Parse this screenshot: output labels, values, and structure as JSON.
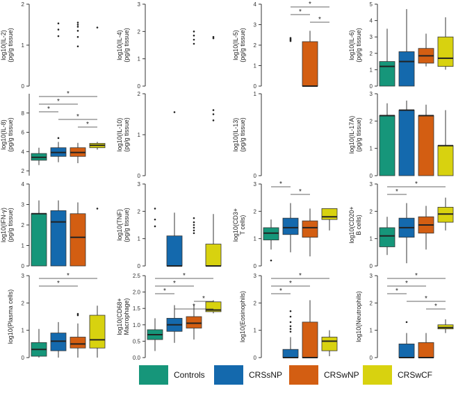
{
  "colors": {
    "Controls": "#16967a",
    "CRSsNP": "#1469ad",
    "CRSwNP": "#d35e12",
    "CRSwCF": "#d8d20f"
  },
  "legend": [
    "Controls",
    "CRSsNP",
    "CRSwNP",
    "CRSwCF"
  ],
  "chart_data": [
    {
      "type": "box",
      "ylabel": [
        "log10(IL-2)",
        "(pg/g tissue)"
      ],
      "ylim": [
        0,
        2
      ],
      "yticks": [
        0,
        1,
        2
      ],
      "groups": [
        {
          "name": "Controls",
          "box": null,
          "outliers": []
        },
        {
          "name": "CRSsNP",
          "box": null,
          "outliers": [
            1.53,
            1.38,
            1.22
          ]
        },
        {
          "name": "CRSwNP",
          "box": null,
          "outliers": [
            1.55,
            1.5,
            1.45,
            1.35,
            1.2,
            0.97
          ]
        },
        {
          "name": "CRSwCF",
          "box": null,
          "outliers": [
            1.43
          ]
        }
      ],
      "sig": []
    },
    {
      "type": "box",
      "ylabel": [
        "log10(IL-4)",
        "(pg/g tissue)"
      ],
      "ylim": [
        0,
        3
      ],
      "yticks": [
        0,
        1,
        2,
        3
      ],
      "groups": [
        {
          "name": "Controls",
          "box": null,
          "outliers": []
        },
        {
          "name": "CRSsNP",
          "box": null,
          "outliers": []
        },
        {
          "name": "CRSwNP",
          "box": null,
          "outliers": [
            2.0,
            1.85,
            1.7,
            1.55
          ]
        },
        {
          "name": "CRSwCF",
          "box": null,
          "outliers": [
            1.8,
            1.75
          ]
        }
      ],
      "sig": []
    },
    {
      "type": "box",
      "ylabel": [
        "log10(IL-5)",
        "(pg/g tissue)"
      ],
      "ylim": [
        0,
        4
      ],
      "yticks": [
        0,
        1,
        2,
        3,
        4
      ],
      "groups": [
        {
          "name": "Controls",
          "box": null,
          "outliers": []
        },
        {
          "name": "CRSsNP",
          "box": null,
          "outliers": [
            2.35,
            2.3,
            2.25,
            2.2
          ]
        },
        {
          "name": "CRSwNP",
          "box": {
            "q1": 0,
            "med": 0,
            "q3": 2.17,
            "lo": 0,
            "hi": 2.7
          },
          "outliers": []
        },
        {
          "name": "CRSwCF",
          "box": null,
          "outliers": []
        }
      ],
      "sig": [
        [
          1,
          3,
          "*"
        ],
        [
          1,
          2,
          "*"
        ],
        [
          2,
          3,
          "*"
        ]
      ]
    },
    {
      "type": "box",
      "ylabel": [
        "log10(IL-6)",
        "(pg/g tissue)"
      ],
      "ylim": [
        0,
        5
      ],
      "yticks": [
        0,
        1,
        2,
        3,
        4,
        5
      ],
      "groups": [
        {
          "name": "Controls",
          "box": {
            "q1": 0,
            "med": 1.2,
            "q3": 1.5,
            "lo": 0,
            "hi": 3.5
          },
          "outliers": []
        },
        {
          "name": "CRSsNP",
          "box": {
            "q1": 0,
            "med": 1.5,
            "q3": 2.1,
            "lo": 0,
            "hi": 4.7
          },
          "outliers": []
        },
        {
          "name": "CRSwNP",
          "box": {
            "q1": 1.4,
            "med": 1.85,
            "q3": 2.3,
            "lo": 1.2,
            "hi": 3.2
          },
          "outliers": []
        },
        {
          "name": "CRSwCF",
          "box": {
            "q1": 1.2,
            "med": 1.7,
            "q3": 3.0,
            "lo": 1.0,
            "hi": 4.2
          },
          "outliers": []
        }
      ],
      "sig": []
    },
    {
      "type": "box",
      "ylabel": [
        "log10(IL-8)",
        "(pg/g tissue)"
      ],
      "ylim": [
        1.5,
        10
      ],
      "yticks": [
        2,
        4,
        6,
        8
      ],
      "groups": [
        {
          "name": "Controls",
          "box": {
            "q1": 3.1,
            "med": 3.4,
            "q3": 3.8,
            "lo": 2.6,
            "hi": 4.4
          },
          "outliers": []
        },
        {
          "name": "CRSsNP",
          "box": {
            "q1": 3.5,
            "med": 3.9,
            "q3": 4.4,
            "lo": 2.9,
            "hi": 5.0
          },
          "outliers": [
            5.4
          ]
        },
        {
          "name": "CRSwNP",
          "box": {
            "q1": 3.5,
            "med": 3.9,
            "q3": 4.4,
            "lo": 2.8,
            "hi": 4.9
          },
          "outliers": []
        },
        {
          "name": "CRSwCF",
          "box": {
            "q1": 4.4,
            "med": 4.65,
            "q3": 4.85,
            "lo": 4.2,
            "hi": 5.0
          },
          "outliers": []
        }
      ],
      "sig": [
        [
          0,
          3,
          "*"
        ],
        [
          0,
          2,
          "*"
        ],
        [
          0,
          1,
          "*"
        ],
        [
          1,
          3,
          "*"
        ],
        [
          2,
          3,
          "*"
        ]
      ]
    },
    {
      "type": "box",
      "ylabel": [
        "log10(IL-10)",
        "(pg/g tissue)"
      ],
      "ylim": [
        0,
        2
      ],
      "yticks": [
        0,
        1,
        2
      ],
      "groups": [
        {
          "name": "Controls",
          "box": null,
          "outliers": []
        },
        {
          "name": "CRSsNP",
          "box": null,
          "outliers": [
            1.55
          ]
        },
        {
          "name": "CRSwNP",
          "box": null,
          "outliers": []
        },
        {
          "name": "CRSwCF",
          "box": null,
          "outliers": [
            1.6,
            1.5,
            1.35
          ]
        }
      ],
      "sig": []
    },
    {
      "type": "box",
      "ylabel": [
        "log10(IL-13)",
        "(pg/g tissue)"
      ],
      "ylim": [
        0,
        1
      ],
      "yticks": [
        0,
        1
      ],
      "groups": [
        {
          "name": "Controls",
          "box": null,
          "outliers": []
        },
        {
          "name": "CRSsNP",
          "box": null,
          "outliers": []
        },
        {
          "name": "CRSwNP",
          "box": null,
          "outliers": []
        },
        {
          "name": "CRSwCF",
          "box": null,
          "outliers": []
        }
      ],
      "sig": []
    },
    {
      "type": "box",
      "ylabel": [
        "log10(IL-17A)",
        "(pg/g tissue)"
      ],
      "ylim": [
        0,
        3
      ],
      "yticks": [
        0,
        1,
        2,
        3
      ],
      "groups": [
        {
          "name": "Controls",
          "box": {
            "q1": 0,
            "med": 2.2,
            "q3": 2.2,
            "lo": 0,
            "hi": 2.65
          },
          "outliers": []
        },
        {
          "name": "CRSsNP",
          "box": {
            "q1": 0,
            "med": 2.4,
            "q3": 2.4,
            "lo": 0,
            "hi": 2.75
          },
          "outliers": []
        },
        {
          "name": "CRSwNP",
          "box": {
            "q1": 0,
            "med": 2.2,
            "q3": 2.2,
            "lo": 0,
            "hi": 2.6
          },
          "outliers": []
        },
        {
          "name": "CRSwCF",
          "box": {
            "q1": 0,
            "med": 1.1,
            "q3": 1.1,
            "lo": 0,
            "hi": 2.4
          },
          "outliers": []
        }
      ],
      "sig": []
    },
    {
      "type": "box",
      "ylabel": [
        "log10(IFN-γ)",
        "(pg/g tissue)"
      ],
      "ylim": [
        0,
        4
      ],
      "yticks": [
        0,
        1,
        2,
        3,
        4
      ],
      "groups": [
        {
          "name": "Controls",
          "box": {
            "q1": 0,
            "med": 2.55,
            "q3": 2.55,
            "lo": 0,
            "hi": 3.2
          },
          "outliers": []
        },
        {
          "name": "CRSsNP",
          "box": {
            "q1": 0,
            "med": 2.15,
            "q3": 2.7,
            "lo": 0,
            "hi": 3.2
          },
          "outliers": []
        },
        {
          "name": "CRSwNP",
          "box": {
            "q1": 0,
            "med": 1.4,
            "q3": 2.55,
            "lo": 0,
            "hi": 3.1
          },
          "outliers": []
        },
        {
          "name": "CRSwCF",
          "box": null,
          "outliers": [
            2.8
          ]
        }
      ],
      "sig": []
    },
    {
      "type": "box",
      "ylabel": [
        "log10(TNF)",
        "(pg/g tissue)"
      ],
      "ylim": [
        0,
        3
      ],
      "yticks": [
        0,
        1,
        2,
        3
      ],
      "groups": [
        {
          "name": "Controls",
          "box": null,
          "outliers": [
            2.1,
            1.7,
            1.45
          ]
        },
        {
          "name": "CRSsNP",
          "box": {
            "q1": 0,
            "med": 0,
            "q3": 1.1,
            "lo": 0,
            "hi": 1.95
          },
          "outliers": []
        },
        {
          "name": "CRSwNP",
          "box": null,
          "outliers": [
            1.75,
            1.6,
            1.5,
            1.4,
            1.3,
            1.2
          ]
        },
        {
          "name": "CRSwCF",
          "box": {
            "q1": 0,
            "med": 0,
            "q3": 0.8,
            "lo": 0,
            "hi": 1.9
          },
          "outliers": []
        }
      ],
      "sig": []
    },
    {
      "type": "box",
      "ylabel": [
        "log10(CD3+",
        "T cells)"
      ],
      "ylim": [
        0,
        3
      ],
      "yticks": [
        0,
        1,
        2,
        3
      ],
      "groups": [
        {
          "name": "Controls",
          "box": {
            "q1": 0.95,
            "med": 1.2,
            "q3": 1.4,
            "lo": 0.6,
            "hi": 1.7
          },
          "outliers": [
            0.2
          ]
        },
        {
          "name": "CRSsNP",
          "box": {
            "q1": 1.15,
            "med": 1.4,
            "q3": 1.75,
            "lo": 0.5,
            "hi": 2.3
          },
          "outliers": []
        },
        {
          "name": "CRSwNP",
          "box": {
            "q1": 1.05,
            "med": 1.4,
            "q3": 1.65,
            "lo": 0.35,
            "hi": 2.1
          },
          "outliers": []
        },
        {
          "name": "CRSwCF",
          "box": {
            "q1": 1.7,
            "med": 1.8,
            "q3": 2.1,
            "lo": 1.3,
            "hi": 2.1
          },
          "outliers": []
        }
      ],
      "sig": [
        [
          0,
          1,
          "*"
        ],
        [
          1,
          2,
          "*"
        ]
      ]
    },
    {
      "type": "box",
      "ylabel": [
        "log10(CD20+",
        "B cells)"
      ],
      "ylim": [
        0,
        3
      ],
      "yticks": [
        0,
        1,
        2,
        3
      ],
      "groups": [
        {
          "name": "Controls",
          "box": {
            "q1": 0.7,
            "med": 1.1,
            "q3": 1.4,
            "lo": 0.4,
            "hi": 1.8
          },
          "outliers": []
        },
        {
          "name": "CRSsNP",
          "box": {
            "q1": 1.05,
            "med": 1.4,
            "q3": 1.75,
            "lo": 0.1,
            "hi": 2.3
          },
          "outliers": []
        },
        {
          "name": "CRSwNP",
          "box": {
            "q1": 1.2,
            "med": 1.5,
            "q3": 1.8,
            "lo": 0.6,
            "hi": 2.2
          },
          "outliers": []
        },
        {
          "name": "CRSwCF",
          "box": {
            "q1": 1.6,
            "med": 1.9,
            "q3": 2.15,
            "lo": 1.3,
            "hi": 2.5
          },
          "outliers": []
        }
      ],
      "sig": [
        [
          0,
          3,
          "*"
        ],
        [
          0,
          1,
          "*"
        ]
      ]
    },
    {
      "type": "box",
      "ylabel": [
        "log10(Plasma cells)"
      ],
      "ylim": [
        0,
        3
      ],
      "yticks": [
        0,
        1,
        2,
        3
      ],
      "groups": [
        {
          "name": "Controls",
          "box": {
            "q1": 0.05,
            "med": 0.3,
            "q3": 0.55,
            "lo": 0,
            "hi": 1.05
          },
          "outliers": []
        },
        {
          "name": "CRSsNP",
          "box": {
            "q1": 0.25,
            "med": 0.6,
            "q3": 0.9,
            "lo": 0,
            "hi": 1.3
          },
          "outliers": []
        },
        {
          "name": "CRSwNP",
          "box": {
            "q1": 0.35,
            "med": 0.5,
            "q3": 0.75,
            "lo": 0,
            "hi": 1.25
          },
          "outliers": [
            1.6,
            1.55
          ]
        },
        {
          "name": "CRSwCF",
          "box": {
            "q1": 0.35,
            "med": 0.65,
            "q3": 1.55,
            "lo": 0,
            "hi": 1.9
          },
          "outliers": []
        }
      ],
      "sig": [
        [
          0,
          3,
          "*"
        ],
        [
          0,
          2,
          "*"
        ]
      ]
    },
    {
      "type": "box",
      "ylabel": [
        "log10(CD68+",
        "Macrophage)"
      ],
      "ylim": [
        0,
        2.5
      ],
      "yticks": [
        0,
        0.5,
        1,
        1.5,
        2,
        2.5
      ],
      "ytickLabels": [
        "0.0",
        "0.5",
        "1.0",
        "1.5",
        "2.0",
        "2.5"
      ],
      "groups": [
        {
          "name": "Controls",
          "box": {
            "q1": 0.55,
            "med": 0.7,
            "q3": 0.85,
            "lo": 0.2,
            "hi": 1.2
          },
          "outliers": []
        },
        {
          "name": "CRSsNP",
          "box": {
            "q1": 0.8,
            "med": 1.0,
            "q3": 1.2,
            "lo": 0.45,
            "hi": 1.6
          },
          "outliers": []
        },
        {
          "name": "CRSwNP",
          "box": {
            "q1": 0.9,
            "med": 1.05,
            "q3": 1.25,
            "lo": 0.55,
            "hi": 1.6
          },
          "outliers": []
        },
        {
          "name": "CRSwCF",
          "box": {
            "q1": 1.4,
            "med": 1.45,
            "q3": 1.7,
            "lo": 1.35,
            "hi": 1.75
          },
          "outliers": []
        }
      ],
      "sig": [
        [
          0,
          3,
          "*"
        ],
        [
          0,
          2,
          "*"
        ],
        [
          0,
          1,
          "*"
        ],
        [
          2,
          3,
          "*"
        ],
        [
          1,
          3,
          "*"
        ]
      ]
    },
    {
      "type": "box",
      "ylabel": [
        "log10(Eosinophils)"
      ],
      "ylim": [
        0,
        3
      ],
      "yticks": [
        0,
        1,
        2,
        3
      ],
      "groups": [
        {
          "name": "Controls",
          "box": null,
          "outliers": []
        },
        {
          "name": "CRSsNP",
          "box": {
            "q1": 0,
            "med": 0,
            "q3": 0.3,
            "lo": 0,
            "hi": 0.75
          },
          "outliers": [
            1.7,
            1.5,
            1.3,
            1.15,
            1.05,
            0.95
          ]
        },
        {
          "name": "CRSwNP",
          "box": {
            "q1": 0,
            "med": 0,
            "q3": 1.3,
            "lo": 0,
            "hi": 2.1
          },
          "outliers": []
        },
        {
          "name": "CRSwCF",
          "box": {
            "q1": 0.25,
            "med": 0.6,
            "q3": 0.75,
            "lo": 0.05,
            "hi": 1.0
          },
          "outliers": []
        }
      ],
      "sig": [
        [
          0,
          3,
          "*"
        ],
        [
          0,
          2,
          "*"
        ],
        [
          0,
          1,
          "*"
        ]
      ]
    },
    {
      "type": "box",
      "ylabel": [
        "log10(Neutrophils)"
      ],
      "ylim": [
        0,
        3
      ],
      "yticks": [
        0,
        1,
        2,
        3
      ],
      "groups": [
        {
          "name": "Controls",
          "box": null,
          "outliers": []
        },
        {
          "name": "CRSsNP",
          "box": {
            "q1": 0,
            "med": 0,
            "q3": 0.5,
            "lo": 0,
            "hi": 0.9
          },
          "outliers": [
            1.3
          ]
        },
        {
          "name": "CRSwNP",
          "box": {
            "q1": 0,
            "med": 0,
            "q3": 0.55,
            "lo": 0,
            "hi": 0.9
          },
          "outliers": []
        },
        {
          "name": "CRSwCF",
          "box": {
            "q1": 1.05,
            "med": 1.1,
            "q3": 1.2,
            "lo": 0.9,
            "hi": 1.4
          },
          "outliers": []
        }
      ],
      "sig": [
        [
          0,
          3,
          "*"
        ],
        [
          0,
          2,
          "*"
        ],
        [
          0,
          1,
          "*"
        ],
        [
          1,
          3,
          "*"
        ],
        [
          2,
          3,
          "*"
        ]
      ]
    }
  ]
}
